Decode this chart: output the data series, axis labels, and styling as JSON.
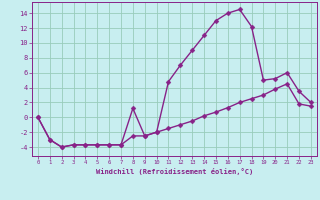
{
  "xlabel": "Windchill (Refroidissement éolien,°C)",
  "background_color": "#c8eef0",
  "grid_color": "#99ccbb",
  "line_color": "#882288",
  "xlim": [
    -0.5,
    23.5
  ],
  "ylim": [
    -5.2,
    15.5
  ],
  "yticks": [
    -4,
    -2,
    0,
    2,
    4,
    6,
    8,
    10,
    12,
    14
  ],
  "xticks": [
    0,
    1,
    2,
    3,
    4,
    5,
    6,
    7,
    8,
    9,
    10,
    11,
    12,
    13,
    14,
    15,
    16,
    17,
    18,
    19,
    20,
    21,
    22,
    23
  ],
  "series1_x": [
    0,
    1,
    2,
    3,
    4,
    5,
    6,
    7,
    8,
    9,
    10,
    11,
    12,
    13,
    14,
    15,
    16,
    17,
    18,
    19,
    20,
    21,
    22,
    23
  ],
  "series1_y": [
    0,
    -3,
    -4,
    -3.7,
    -3.7,
    -3.7,
    -3.7,
    -3.7,
    1.2,
    -2.5,
    -2.0,
    4.8,
    7.0,
    9.0,
    11.0,
    13.0,
    14.0,
    14.5,
    12.2,
    5.0,
    5.2,
    6.0,
    3.5,
    2.0
  ],
  "series2_x": [
    0,
    1,
    2,
    3,
    4,
    5,
    6,
    7,
    8,
    9,
    10,
    11,
    12,
    13,
    14,
    15,
    16,
    17,
    18,
    19,
    20,
    21,
    22,
    23
  ],
  "series2_y": [
    0,
    -3,
    -4,
    -3.7,
    -3.7,
    -3.7,
    -3.7,
    -3.7,
    -2.5,
    -2.5,
    -2.0,
    -1.5,
    -1.0,
    -0.5,
    0.2,
    0.7,
    1.3,
    2.0,
    2.5,
    3.0,
    3.8,
    4.5,
    1.8,
    1.5
  ],
  "marker": "D",
  "markersize": 2.5,
  "linewidth": 1.0
}
